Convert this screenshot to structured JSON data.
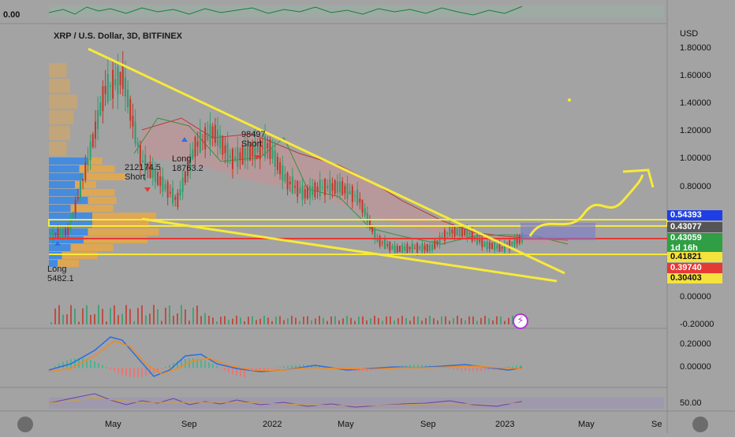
{
  "header": {
    "symbol_title": "XRP / U.S. Dollar, 3D, BITFINEX",
    "currency": "USD",
    "top_indicator_value": "0.00"
  },
  "price_axis_labels": [
    "1.80000",
    "1.60000",
    "1.40000",
    "1.20000",
    "1.00000",
    "0.80000",
    "0.00000",
    "-0.20000"
  ],
  "price_tags": [
    {
      "label": "0.54393",
      "bg": "#1e3fe6",
      "fg": "#ffffff"
    },
    {
      "label": "0.43077",
      "bg": "#555555",
      "fg": "#ffffff"
    },
    {
      "label": "0.43059",
      "bg": "#2f9e44",
      "fg": "#ffffff"
    },
    {
      "label": "1d 16h",
      "bg": "#2f9e44",
      "fg": "#ffffff"
    },
    {
      "label": "0.41821",
      "bg": "#f5e23c",
      "fg": "#111111"
    },
    {
      "label": "0.39740",
      "bg": "#e53935",
      "fg": "#ffffff"
    },
    {
      "label": "0.30403",
      "bg": "#f5e23c",
      "fg": "#111111"
    }
  ],
  "macd_axis_labels": [
    "0.20000",
    "0.00000"
  ],
  "rsi_axis_label": "50.00",
  "time_axis_labels": [
    "May",
    "Sep",
    "2022",
    "May",
    "Sep",
    "2023",
    "May",
    "Se"
  ],
  "annotations": [
    {
      "text": "Long\n5482.1"
    },
    {
      "text": "212174.5\nShort"
    },
    {
      "text": "Long\n18763.2"
    },
    {
      "text": "98497\nShort"
    }
  ],
  "colors": {
    "trendline": "#f7e93a",
    "support_line": "#e53935",
    "volume_profile_blue": "#3b8ae6",
    "volume_profile_orange": "#f0a83a",
    "up_candle": "#2f9e6e",
    "down_candle": "#c0392b",
    "background": "#a3a3a3"
  },
  "chart_data": {
    "type": "line",
    "title": "XRP / U.S. Dollar, 3D, BITFINEX",
    "xlabel": "",
    "ylabel": "USD",
    "ylim": [
      -0.2,
      1.9
    ],
    "x": [
      "2021-02",
      "2021-03",
      "2021-04",
      "2021-04-15",
      "2021-05",
      "2021-05-20",
      "2021-06",
      "2021-07",
      "2021-08",
      "2021-09",
      "2021-09-10",
      "2021-10",
      "2021-11",
      "2021-12",
      "2022-01",
      "2022-02",
      "2022-03",
      "2022-04",
      "2022-05",
      "2022-06",
      "2022-07",
      "2022-08",
      "2022-09",
      "2022-10",
      "2022-11",
      "2022-12",
      "2023-01"
    ],
    "series": [
      {
        "values": [
          0.45,
          0.48,
          0.95,
          1.5,
          1.6,
          1.0,
          0.85,
          0.7,
          1.1,
          1.2,
          1.0,
          1.05,
          1.1,
          0.85,
          0.75,
          0.8,
          0.8,
          0.72,
          0.42,
          0.35,
          0.36,
          0.36,
          0.48,
          0.47,
          0.38,
          0.36,
          0.43
        ]
      }
    ],
    "horizontal_levels": [
      0.54393,
      0.43077,
      0.3974,
      0.30403
    ],
    "grid": false
  }
}
